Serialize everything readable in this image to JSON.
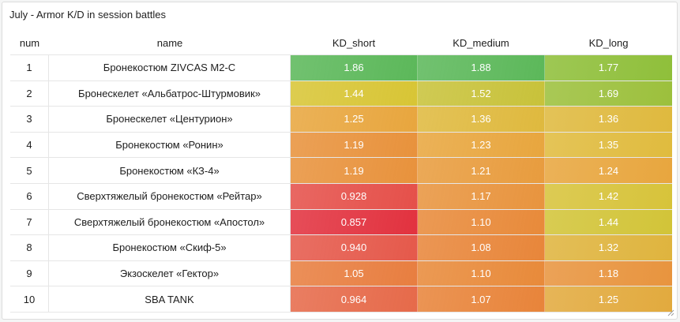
{
  "panel": {
    "title": "July - Armor K/D in session battles"
  },
  "table": {
    "columns": [
      "num",
      "name",
      "KD_short",
      "KD_medium",
      "KD_long"
    ],
    "rows": [
      {
        "num": "1",
        "name": "Бронекостюм ZIVCAS M2-C",
        "kd": [
          "1.86",
          "1.88",
          "1.77"
        ]
      },
      {
        "num": "2",
        "name": "Бронескелет «Альбатрос-Штурмовик»",
        "kd": [
          "1.44",
          "1.52",
          "1.69"
        ]
      },
      {
        "num": "3",
        "name": "Бронескелет «Центурион»",
        "kd": [
          "1.25",
          "1.36",
          "1.36"
        ]
      },
      {
        "num": "4",
        "name": "Бронекостюм «Ронин»",
        "kd": [
          "1.19",
          "1.23",
          "1.35"
        ]
      },
      {
        "num": "5",
        "name": "Бронекостюм «КЗ-4»",
        "kd": [
          "1.19",
          "1.21",
          "1.24"
        ]
      },
      {
        "num": "6",
        "name": "Сверхтяжелый бронекостюм «Рейтар»",
        "kd": [
          "0.928",
          "1.17",
          "1.42"
        ]
      },
      {
        "num": "7",
        "name": "Сверхтяжелый бронекостюм «Апостол»",
        "kd": [
          "0.857",
          "1.10",
          "1.44"
        ]
      },
      {
        "num": "8",
        "name": "Бронекостюм «Скиф-5»",
        "kd": [
          "0.940",
          "1.08",
          "1.32"
        ]
      },
      {
        "num": "9",
        "name": "Экзоскелет «Гектор»",
        "kd": [
          "1.05",
          "1.10",
          "1.18"
        ]
      },
      {
        "num": "10",
        "name": "SBA TANK",
        "kd": [
          "0.964",
          "1.07",
          "1.25"
        ]
      }
    ]
  },
  "colors": {
    "cells": [
      [
        "#5cb85a",
        "#5cb85a",
        "#8fbf3a"
      ],
      [
        "#d8c535",
        "#c8c23a",
        "#9cc03c"
      ],
      [
        "#e8a63e",
        "#dfb93e",
        "#dfb93e"
      ],
      [
        "#e8923c",
        "#e8a63e",
        "#e0bb3e"
      ],
      [
        "#e8923c",
        "#e89c3e",
        "#e8a63e"
      ],
      [
        "#e5504a",
        "#e8943e",
        "#d7c33a"
      ],
      [
        "#e2323f",
        "#e88a3a",
        "#d2c438"
      ],
      [
        "#e5594b",
        "#e8863a",
        "#dfb43e"
      ],
      [
        "#e87e40",
        "#e88a3a",
        "#e8943e"
      ],
      [
        "#e66a4a",
        "#e8843a",
        "#e2aa3e"
      ]
    ]
  }
}
